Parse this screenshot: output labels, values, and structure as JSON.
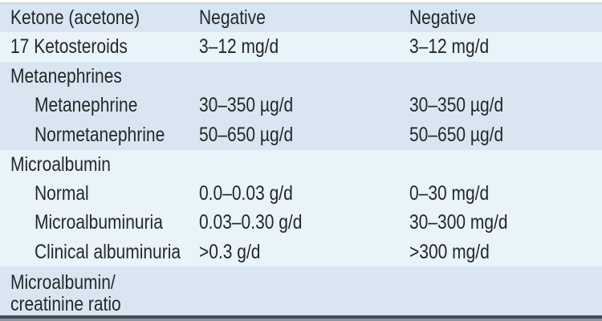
{
  "page": {
    "background": "#ffffff"
  },
  "colors": {
    "row-a": "#d9e6f2",
    "row-b": "#e9f3fa",
    "text": "#242729",
    "top-line": "#ccd7e0",
    "bottom-bar": "#414c56",
    "bottom-edge": "#8d969e"
  },
  "table": {
    "groups": [
      {
        "shade": "a",
        "rows": [
          {
            "label": "Ketone (acetone)",
            "value1": "Negative",
            "value2": "Negative"
          }
        ]
      },
      {
        "shade": "b",
        "rows": [
          {
            "label": "17 Ketosteroids",
            "value1": "3–12 mg/d",
            "value2": "3–12 mg/d"
          }
        ]
      },
      {
        "shade": "a",
        "rows": [
          {
            "label": "Metanephrines",
            "value1": "",
            "value2": ""
          },
          {
            "label": "Metanephrine",
            "indent": true,
            "value1": "30–350 µg/d",
            "value2": "30–350 µg/d"
          },
          {
            "label": "Normetanephrine",
            "indent": true,
            "value1": "50–650 µg/d",
            "value2": "50–650 µg/d"
          }
        ]
      },
      {
        "shade": "b",
        "rows": [
          {
            "label": "Microalbumin",
            "value1": "",
            "value2": ""
          },
          {
            "label": "Normal",
            "indent": true,
            "value1": "0.0–0.03 g/d",
            "value2": "0–30 mg/d"
          },
          {
            "label": "Microalbuminuria",
            "indent": true,
            "value1": "0.03–0.30 g/d",
            "value2": "30–300 mg/d"
          },
          {
            "label": "Clinical albuminuria",
            "indent": true,
            "value1": ">0.3 g/d",
            "value2": ">300 mg/d"
          }
        ]
      },
      {
        "shade": "a",
        "rows": [
          {
            "label_line1": "Microalbumin/",
            "label_line2": "creatinine ratio",
            "value1": "",
            "value2": ""
          }
        ]
      }
    ]
  }
}
